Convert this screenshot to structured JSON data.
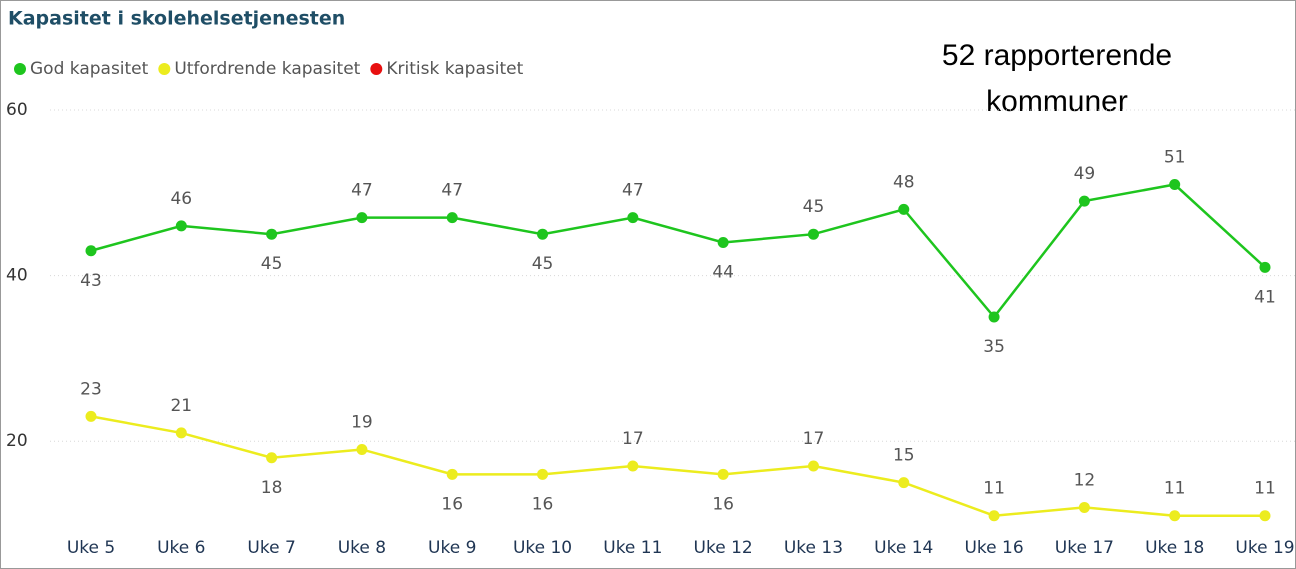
{
  "chart_data": {
    "type": "line",
    "title": "Kapasitet i skolehelsetjenesten",
    "annotation": [
      "52 rapporterende",
      "kommuner"
    ],
    "categories": [
      "Uke 5",
      "Uke 6",
      "Uke 7",
      "Uke 8",
      "Uke 9",
      "Uke 10",
      "Uke 11",
      "Uke 12",
      "Uke 13",
      "Uke 14",
      "Uke 16",
      "Uke 17",
      "Uke 18",
      "Uke 19"
    ],
    "series": [
      {
        "name": "God kapasitet",
        "color": "#1ec51e",
        "values": [
          43,
          46,
          45,
          47,
          47,
          45,
          47,
          44,
          45,
          48,
          35,
          49,
          51,
          41
        ]
      },
      {
        "name": "Utfordrende kapasitet",
        "color": "#ecec1e",
        "values": [
          23,
          21,
          18,
          19,
          16,
          16,
          17,
          16,
          17,
          15,
          11,
          12,
          11,
          11
        ]
      },
      {
        "name": "Kritisk kapasitet",
        "color": "#e81010",
        "values": [
          null,
          null,
          null,
          null,
          null,
          null,
          null,
          null,
          null,
          null,
          null,
          null,
          null,
          null
        ]
      }
    ],
    "ylim": [
      10,
      60
    ],
    "yticks": [
      20,
      40,
      60
    ],
    "grid": true,
    "legend": "top-left"
  }
}
